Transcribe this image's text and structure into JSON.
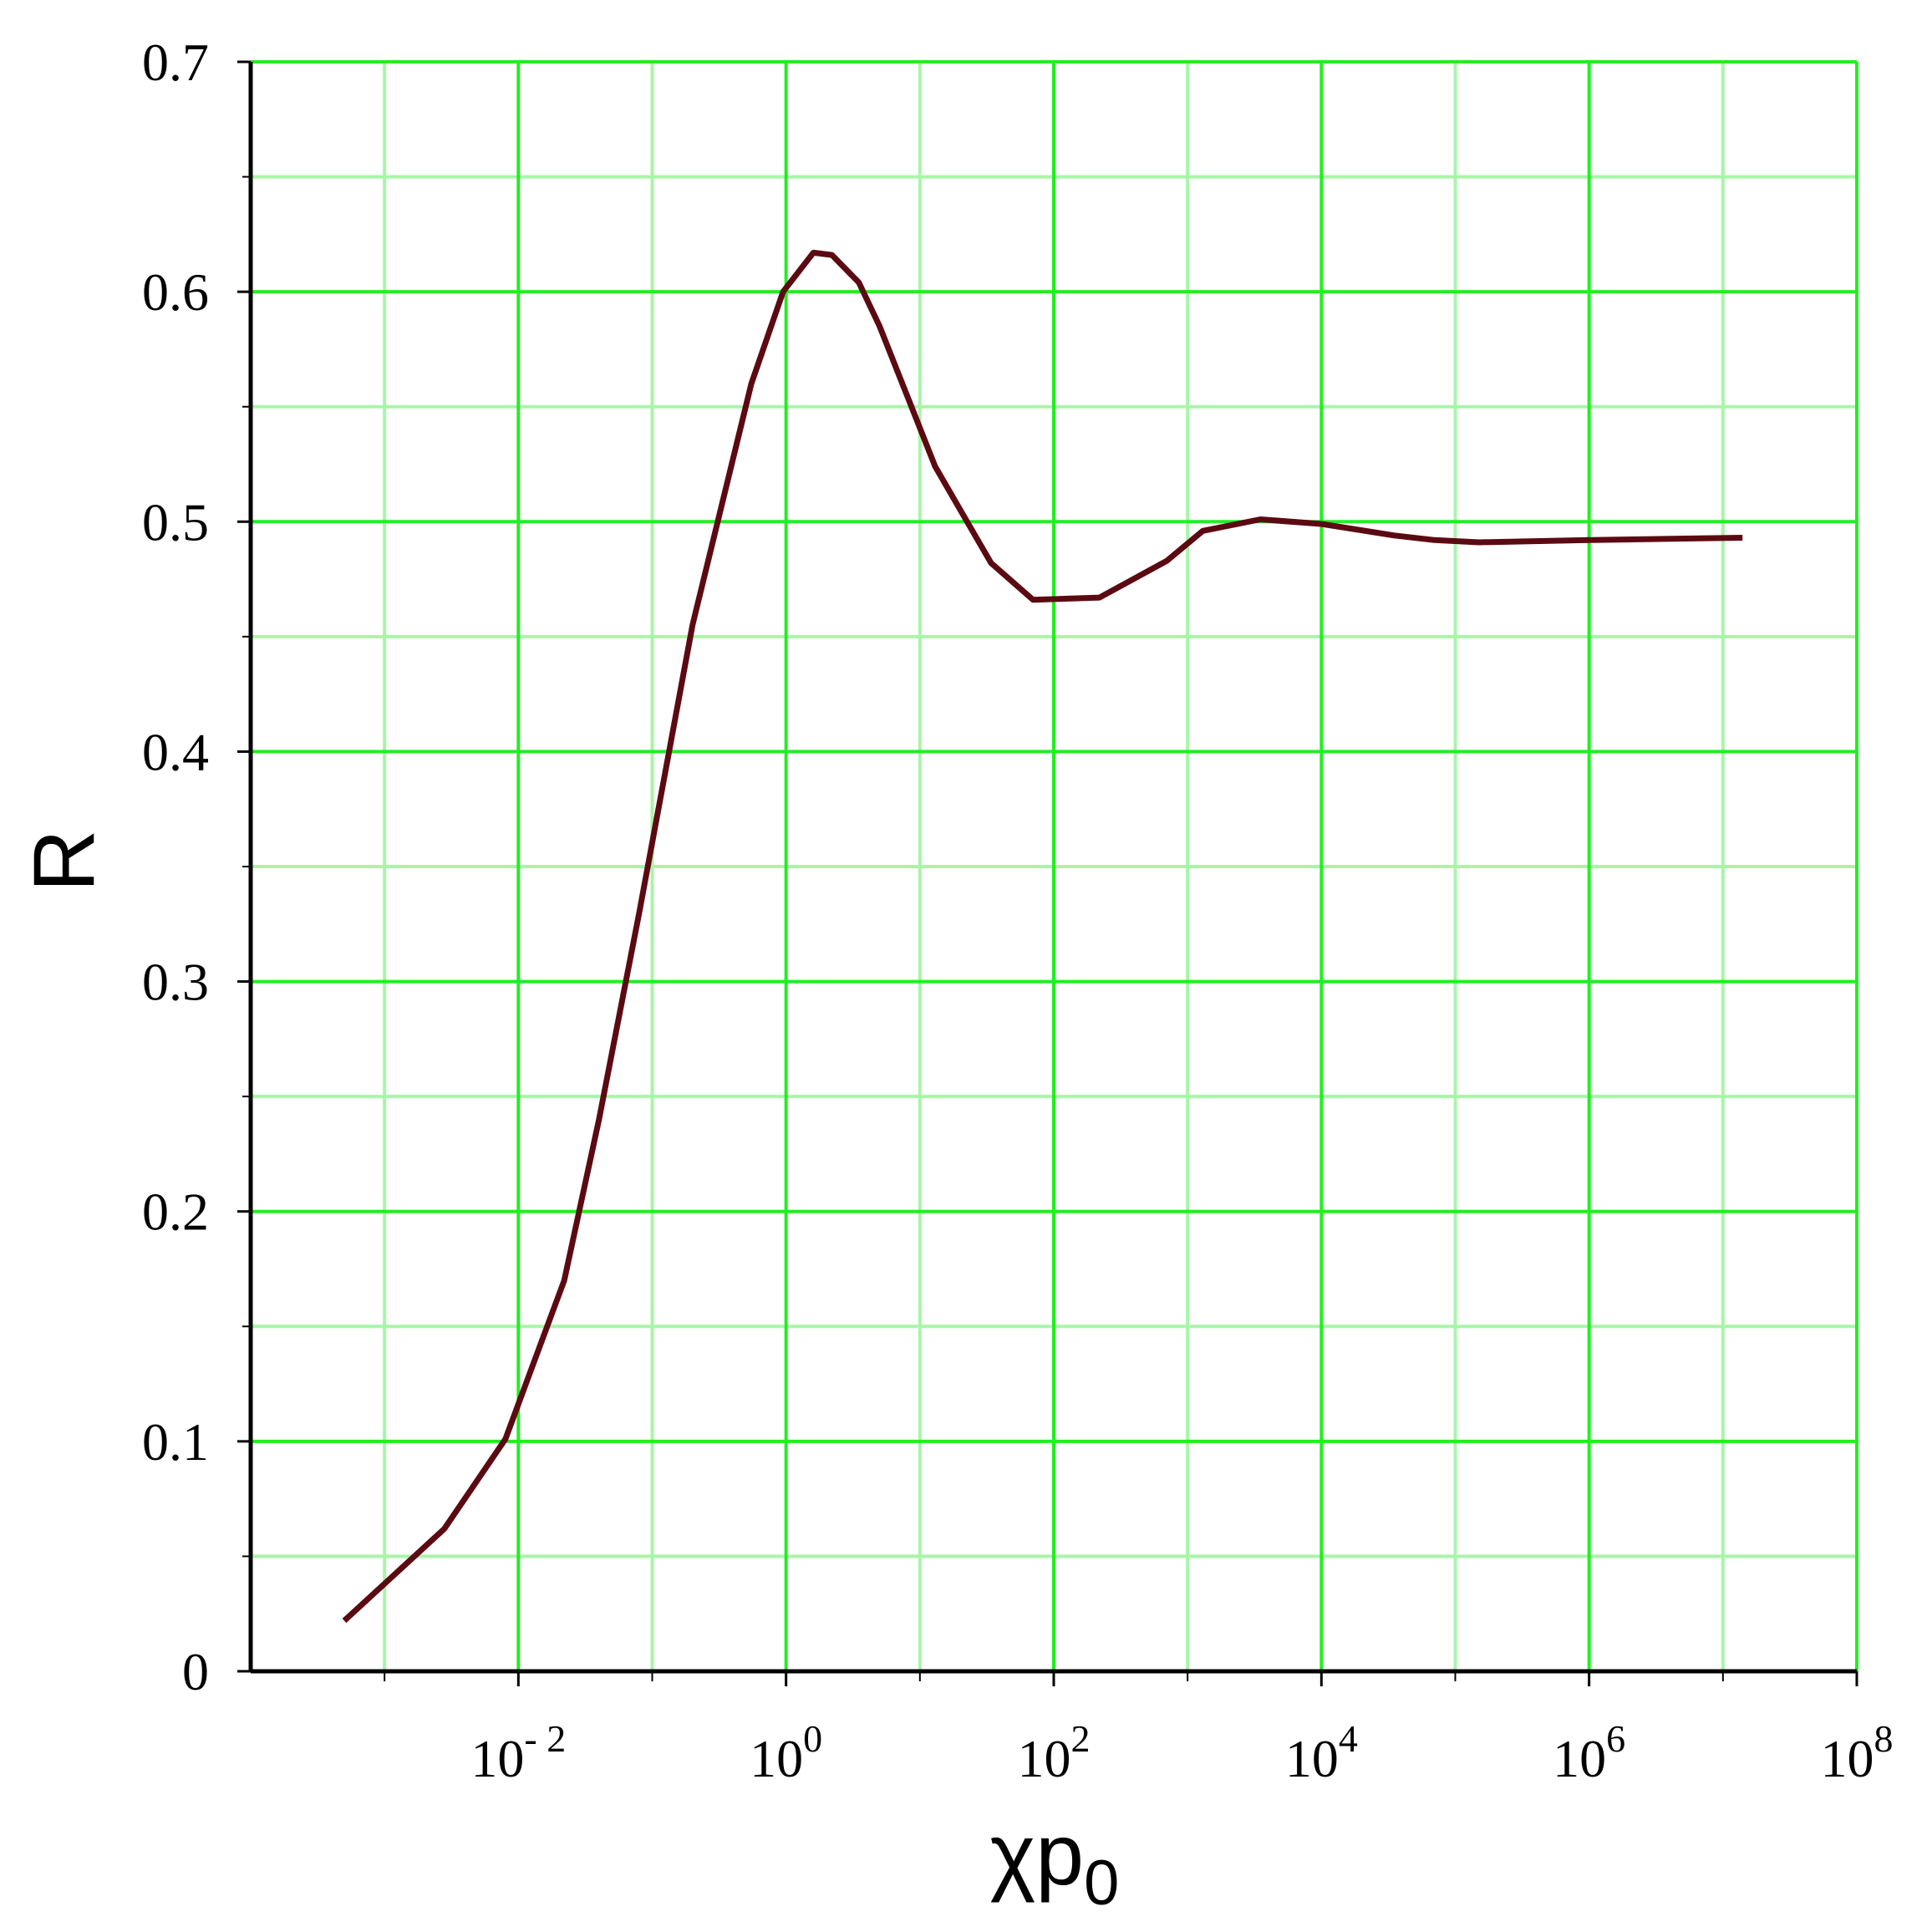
{
  "chart_data": {
    "type": "line",
    "xlabel": "χp",
    "xlabel_subscript": "0",
    "ylabel": "R",
    "x_scale": "log10",
    "xlim": [
      0.0001,
      100000000
    ],
    "ylim": [
      0,
      0.7
    ],
    "grid": true,
    "grid_major_color": "#22ee22",
    "grid_minor_color": "#a8f5a8",
    "line_color": "#5c0a12",
    "y_ticks": [
      {
        "value": 0,
        "label": "0"
      },
      {
        "value": 0.1,
        "label": "0.1"
      },
      {
        "value": 0.2,
        "label": "0.2"
      },
      {
        "value": 0.3,
        "label": "0.3"
      },
      {
        "value": 0.4,
        "label": "0.4"
      },
      {
        "value": 0.5,
        "label": "0.5"
      },
      {
        "value": 0.6,
        "label": "0.6"
      },
      {
        "value": 0.7,
        "label": "0.7"
      }
    ],
    "x_ticks": [
      {
        "value": 0.01,
        "base": "10",
        "exp": "- 2"
      },
      {
        "value": 1,
        "base": "10",
        "exp": "0"
      },
      {
        "value": 100,
        "base": "10",
        "exp": "2"
      },
      {
        "value": 10000,
        "base": "10",
        "exp": "4"
      },
      {
        "value": 1000000,
        "base": "10",
        "exp": "6"
      },
      {
        "value": 100000000,
        "base": "10",
        "exp": "8"
      }
    ],
    "series": [
      {
        "points": [
          [
            0.0005,
            0.022
          ],
          [
            0.0028,
            0.062
          ],
          [
            0.008,
            0.101
          ],
          [
            0.022,
            0.17
          ],
          [
            0.04,
            0.24
          ],
          [
            0.08,
            0.33
          ],
          [
            0.2,
            0.455
          ],
          [
            0.55,
            0.56
          ],
          [
            0.95,
            0.6
          ],
          [
            1.6,
            0.617
          ],
          [
            2.2,
            0.616
          ],
          [
            3.5,
            0.604
          ],
          [
            5,
            0.585
          ],
          [
            13,
            0.524
          ],
          [
            34,
            0.482
          ],
          [
            70,
            0.466
          ],
          [
            220,
            0.467
          ],
          [
            700,
            0.483
          ],
          [
            1300,
            0.496
          ],
          [
            3500,
            0.501
          ],
          [
            10000,
            0.499
          ],
          [
            35000,
            0.494
          ],
          [
            70000,
            0.492
          ],
          [
            150000,
            0.491
          ],
          [
            1000000,
            0.492
          ],
          [
            14000000,
            0.493
          ]
        ]
      }
    ]
  }
}
